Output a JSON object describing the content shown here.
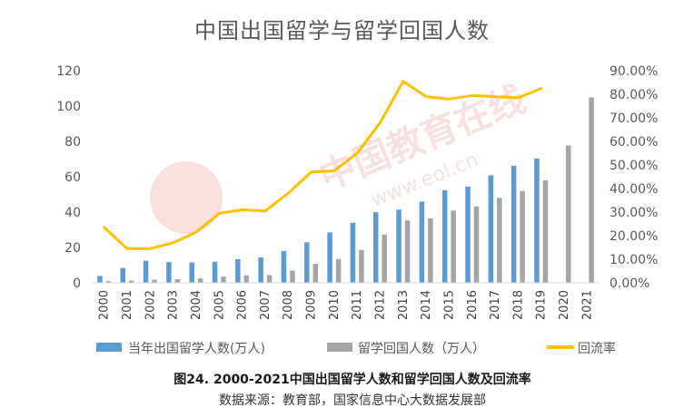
{
  "chart_data": {
    "type": "bar",
    "title": "中国出国留学与留学回国人数",
    "categories": [
      "2000",
      "2001",
      "2002",
      "2003",
      "2004",
      "2005",
      "2006",
      "2007",
      "2008",
      "2009",
      "2010",
      "2011",
      "2012",
      "2013",
      "2014",
      "2015",
      "2016",
      "2017",
      "2018",
      "2019",
      "2020",
      "2021"
    ],
    "series": [
      {
        "name": "当年出国留学人数(万人)",
        "type": "bar",
        "axis": "left",
        "color": "#5b9bd5",
        "values": [
          3.9,
          8.4,
          12.5,
          11.7,
          11.5,
          11.9,
          13.4,
          14.4,
          18.0,
          22.9,
          28.5,
          34.0,
          39.96,
          41.39,
          45.98,
          52.37,
          54.45,
          60.84,
          66.21,
          70.35,
          null,
          null
        ]
      },
      {
        "name": "留学回国人数（万人）",
        "type": "bar",
        "axis": "left",
        "color": "#a5a5a5",
        "values": [
          0.9,
          1.2,
          1.8,
          2.0,
          2.5,
          3.5,
          4.2,
          4.4,
          6.9,
          10.8,
          13.5,
          18.6,
          27.29,
          35.35,
          36.48,
          40.91,
          43.25,
          48.09,
          51.94,
          58.03,
          77.7,
          104.9
        ]
      },
      {
        "name": "回流率",
        "type": "line",
        "axis": "right",
        "color": "#ffc000",
        "values": [
          23.5,
          14.5,
          14.5,
          17.0,
          21.5,
          29.5,
          31.0,
          30.5,
          38.0,
          47.0,
          47.5,
          55.0,
          68.0,
          85.5,
          79.0,
          78.0,
          79.5,
          79.0,
          78.5,
          82.5,
          null,
          null
        ]
      }
    ],
    "y_left": {
      "min": 0,
      "max": 120,
      "ticks": [
        "0",
        "20",
        "40",
        "60",
        "80",
        "100",
        "120"
      ]
    },
    "y_right": {
      "min": 0,
      "max": 90,
      "ticks": [
        "0.00%",
        "10.00%",
        "20.00%",
        "30.00%",
        "40.00%",
        "50.00%",
        "60.00%",
        "70.00%",
        "80.00%",
        "90.00%"
      ]
    },
    "grid": false,
    "legend_position": "bottom"
  },
  "legend": {
    "bar1": "当年出国留学人数(万人)",
    "bar2": "留学回国人数（万人）",
    "line": "回流率"
  },
  "caption": "图24. 2000-2021中国出国留学人数和留学回国人数及回流率",
  "source": "数据来源：教育部，国家信息中心大数据发展部",
  "watermark": {
    "text": "中国教育在线",
    "url": "www.eol.cn"
  }
}
